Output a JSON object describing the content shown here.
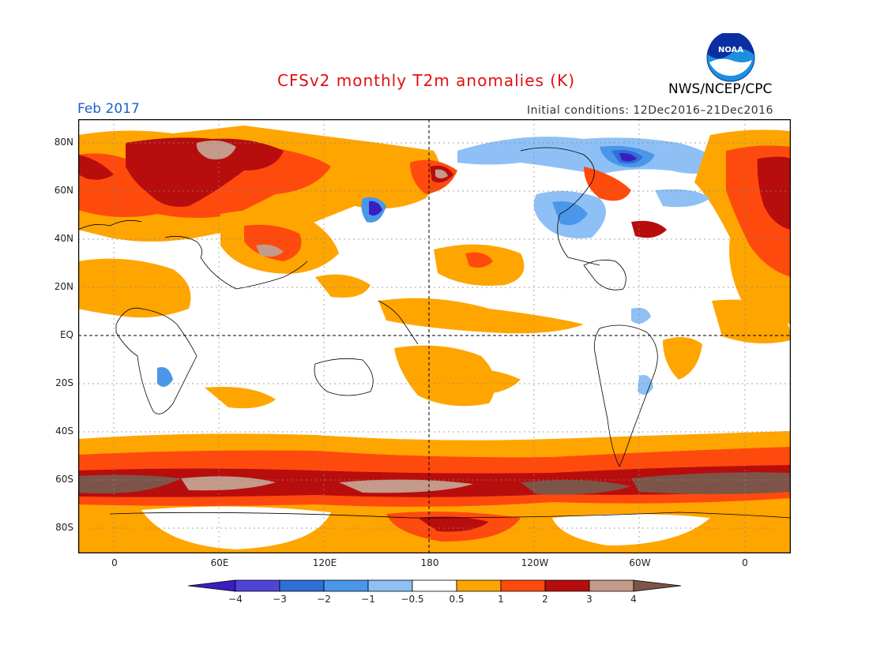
{
  "title": "CFSv2 monthly T2m anomalies (K)",
  "period": "Feb 2017",
  "initial_conditions": "Initial conditions: 12Dec2016–21Dec2016",
  "agency": "NWS/NCEP/CPC",
  "logo_text": "NOAA",
  "lat_labels": [
    "80N",
    "60N",
    "40N",
    "20N",
    "EQ",
    "20S",
    "40S",
    "60S",
    "80S"
  ],
  "lon_labels": [
    "0",
    "60E",
    "120E",
    "180",
    "120W",
    "60W",
    "0"
  ],
  "colorbar": {
    "labels": [
      "−4",
      "−3",
      "−2",
      "−1",
      "−0.5",
      "0.5",
      "1",
      "2",
      "3",
      "4"
    ],
    "colors": [
      "#3a1ec0",
      "#4f44d8",
      "#2e6fd8",
      "#4a97ea",
      "#8ec0f5",
      "#ffffff",
      "#ffa500",
      "#ff4a0d",
      "#b80d0d",
      "#c49a8a",
      "#7c5548"
    ]
  }
}
